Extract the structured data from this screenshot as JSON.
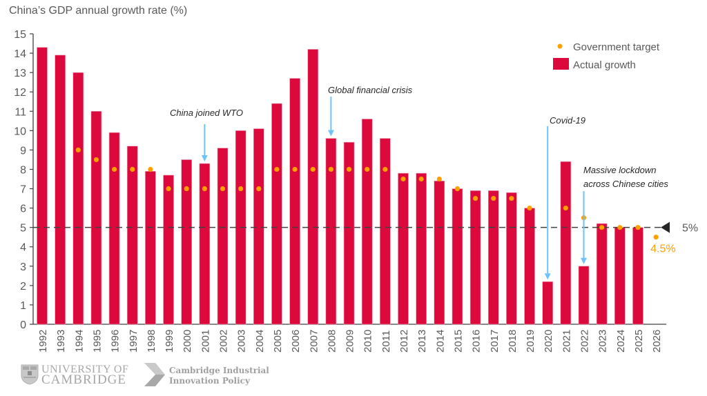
{
  "title": "China’s GDP annual growth rate (%)",
  "chart_data": {
    "type": "bar",
    "title": "China’s GDP annual growth rate (%)",
    "xlabel": "",
    "ylabel": "",
    "ylim": [
      0,
      15
    ],
    "yticks": [
      0,
      1,
      2,
      3,
      4,
      5,
      6,
      7,
      8,
      9,
      10,
      11,
      12,
      13,
      14,
      15
    ],
    "grid": false,
    "legend_position": "top-right",
    "categories": [
      "1992",
      "1993",
      "1994",
      "1995",
      "1996",
      "1997",
      "1998",
      "1999",
      "2000",
      "2001",
      "2002",
      "2003",
      "2004",
      "2005",
      "2006",
      "2007",
      "2008",
      "2009",
      "2010",
      "2011",
      "2012",
      "2013",
      "2014",
      "2015",
      "2016",
      "2017",
      "2018",
      "2019",
      "2020",
      "2021",
      "2022",
      "2023",
      "2024",
      "2025",
      "2026"
    ],
    "series": [
      {
        "name": "Actual growth",
        "kind": "bar",
        "color": "#dc0a3c",
        "values": [
          14.3,
          13.9,
          13.0,
          11.0,
          9.9,
          9.2,
          7.9,
          7.7,
          8.5,
          8.3,
          9.1,
          10.0,
          10.1,
          11.4,
          12.7,
          14.2,
          9.6,
          9.4,
          10.6,
          9.6,
          7.8,
          7.8,
          7.4,
          7.0,
          6.9,
          6.9,
          6.8,
          6.0,
          2.2,
          8.4,
          3.0,
          5.2,
          5.0,
          5.0,
          null
        ]
      },
      {
        "name": "Government target",
        "kind": "dot",
        "color": "#ffa000",
        "values": [
          null,
          null,
          9.0,
          8.5,
          8.0,
          8.0,
          8.0,
          7.0,
          7.0,
          7.0,
          7.0,
          7.0,
          7.0,
          8.0,
          8.0,
          8.0,
          8.0,
          8.0,
          8.0,
          8.0,
          7.5,
          7.5,
          7.5,
          7.0,
          6.5,
          6.5,
          6.5,
          6.0,
          null,
          6.0,
          5.5,
          5.0,
          5.0,
          5.0,
          4.5
        ]
      }
    ],
    "reference_line": {
      "value": 5,
      "label": "5%",
      "style": "dashed",
      "color": "#404040"
    },
    "highlight_label": {
      "category": "2026",
      "label": "4.5%",
      "color": "#ffa000"
    },
    "annotations": [
      {
        "text": "China joined WTO",
        "category": "2001",
        "arrow_to_value": 8.3
      },
      {
        "text": "Global financial crisis",
        "category": "2008",
        "arrow_to_value": 9.6
      },
      {
        "text": "Covid-19",
        "category": "2020",
        "arrow_to_value": 2.2
      },
      {
        "text": "Massive lockdown",
        "text2": "across Chinese cities",
        "category": "2022",
        "arrow_to_value": 3.0
      }
    ],
    "arrow_color": "#6ec3fa"
  },
  "legend": {
    "target_label": "Government target",
    "actual_label": "Actual growth"
  },
  "footer": {
    "uc_line1": "UNIVERSITY OF",
    "uc_line2": "CAMBRIDGE",
    "ciip_line1": "Cambridge Industrial",
    "ciip_line2": "Innovation Policy"
  }
}
